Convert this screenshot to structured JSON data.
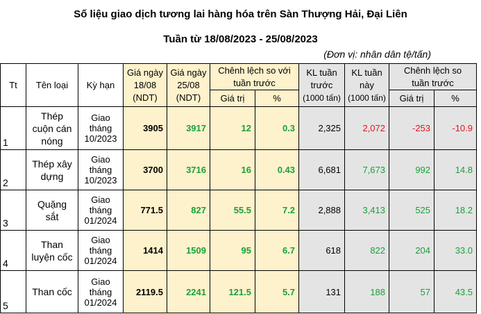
{
  "title_line1": "Số liệu giao dịch tương lai hàng hóa trên Sàn Thượng Hải, Đại Liên",
  "title_line2": "Tuần từ 18/08/2023 - 25/08/2023",
  "unit_note": "(Đơn vị: nhân dân tệ/tấn)",
  "headers": {
    "tt": "Tt",
    "name": "Tên loại",
    "term": "Kỳ hạn",
    "price_prev": [
      "Giá ngày",
      "18/08",
      "(NDT)"
    ],
    "price_curr": [
      "Giá ngày",
      "25/08",
      "(NDT)"
    ],
    "diff_price": [
      "Chênh lệch so với",
      "tuần trước"
    ],
    "diff_value": "Giá trị",
    "diff_pct": "%",
    "vol_prev": [
      "KL tuần",
      "trước",
      "(1000 tấn)"
    ],
    "vol_curr": [
      "KL tuần",
      "này",
      "(1000 tấn)"
    ],
    "diff_vol": [
      "Chênh lệch so",
      "tuần trước"
    ],
    "diff_vol_value": "Giá trị",
    "diff_vol_pct": "%"
  },
  "colors": {
    "header_yellow": "#fdf2cc",
    "header_gray": "#e4e4e4",
    "positive": "#1aa138",
    "negative": "#e8101d"
  },
  "rows": [
    {
      "tt": "1",
      "name": [
        "Thép",
        "cuộn cán",
        "nóng"
      ],
      "term": [
        "Giao",
        "tháng",
        "10/2023"
      ],
      "price_prev": "3905",
      "price_curr": "3917",
      "diff_value": "12",
      "diff_pct": "0.3",
      "vol_prev": "2,325",
      "vol_curr": "2,072",
      "vol_diff": "-253",
      "vol_pct": "-10.9",
      "vol_trend": "down"
    },
    {
      "tt": "2",
      "name": [
        "Thép xây",
        "dựng"
      ],
      "term": [
        "Giao",
        "tháng",
        "10/2023"
      ],
      "price_prev": "3700",
      "price_curr": "3716",
      "diff_value": "16",
      "diff_pct": "0.43",
      "vol_prev": "6,681",
      "vol_curr": "7,673",
      "vol_diff": "992",
      "vol_pct": "14.8",
      "vol_trend": "up"
    },
    {
      "tt": "3",
      "name": [
        "Quặng",
        "sắt"
      ],
      "term": [
        "Giao",
        "tháng",
        "01/2024"
      ],
      "price_prev": "771.5",
      "price_curr": "827",
      "diff_value": "55.5",
      "diff_pct": "7.2",
      "vol_prev": "2,888",
      "vol_curr": "3,413",
      "vol_diff": "525",
      "vol_pct": "18.2",
      "vol_trend": "up"
    },
    {
      "tt": "4",
      "name": [
        "Than",
        "luyện cốc"
      ],
      "term": [
        "Giao",
        "tháng",
        "01/2024"
      ],
      "price_prev": "1414",
      "price_curr": "1509",
      "diff_value": "95",
      "diff_pct": "6.7",
      "vol_prev": "618",
      "vol_curr": "822",
      "vol_diff": "204",
      "vol_pct": "33.0",
      "vol_trend": "up"
    },
    {
      "tt": "5",
      "name": [
        "Than cốc"
      ],
      "term": [
        "Giao",
        "tháng",
        "01/2024"
      ],
      "price_prev": "2119.5",
      "price_curr": "2241",
      "diff_value": "121.5",
      "diff_pct": "5.7",
      "vol_prev": "131",
      "vol_curr": "188",
      "vol_diff": "57",
      "vol_pct": "43.5",
      "vol_trend": "up"
    }
  ]
}
